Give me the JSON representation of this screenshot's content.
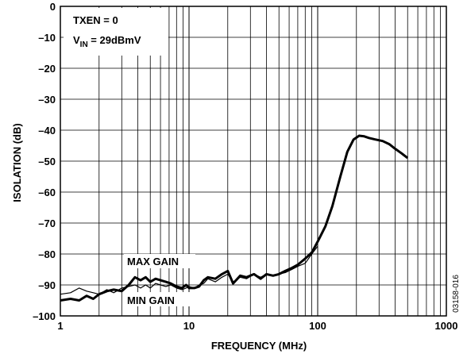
{
  "chart_data": {
    "type": "line",
    "title": "",
    "xlabel": "FREQUENCY (MHz)",
    "ylabel": "ISOLATION (dB)",
    "xscale": "log",
    "xlim": [
      1,
      1000
    ],
    "ylim": [
      -100,
      0
    ],
    "grid": true,
    "x_tick_labels": [
      "1",
      "10",
      "100",
      "1000"
    ],
    "y_tick_labels": [
      "0",
      "–10",
      "–20",
      "–30",
      "–40",
      "–50",
      "–60",
      "–70",
      "–80",
      "–90",
      "–100"
    ],
    "annotations": {
      "condition_line1": "TXEN = 0",
      "condition_line2_main": "V",
      "condition_line2_sub": "IN",
      "condition_line2_rest": " = 29dBmV",
      "max_gain_label": "MAX GAIN",
      "min_gain_label": "MIN GAIN",
      "figure_id": "03158-016"
    },
    "series": [
      {
        "name": "MAX GAIN",
        "line_weight": "thick",
        "x": [
          1,
          1.2,
          1.4,
          1.6,
          1.8,
          2,
          2.3,
          2.6,
          3,
          3.4,
          3.8,
          4.2,
          4.6,
          5,
          5.5,
          6,
          6.6,
          7.2,
          8,
          8.8,
          9.5,
          10,
          11,
          12,
          13,
          14,
          16,
          18,
          20,
          22,
          25,
          28,
          32,
          36,
          40,
          45,
          50,
          56,
          63,
          70,
          80,
          90,
          100,
          115,
          130,
          150,
          170,
          190,
          210,
          230,
          250,
          280,
          320,
          360,
          400,
          450,
          500
        ],
        "y": [
          -95,
          -94.5,
          -95,
          -93.5,
          -94.5,
          -93,
          -92,
          -91.5,
          -92,
          -90,
          -87.5,
          -88.5,
          -87.5,
          -89,
          -88,
          -88.5,
          -89,
          -89.5,
          -90.5,
          -91,
          -90,
          -91,
          -91,
          -90.5,
          -88.5,
          -87.5,
          -88,
          -86.5,
          -85.5,
          -89.5,
          -87,
          -87.5,
          -86.5,
          -88,
          -86.5,
          -87,
          -86.5,
          -85.5,
          -84.5,
          -83.5,
          -81.5,
          -79.5,
          -76,
          -71,
          -64.5,
          -55,
          -47,
          -43,
          -41.8,
          -42,
          -42.5,
          -43,
          -43.5,
          -44.5,
          -46,
          -47.5,
          -49
        ]
      },
      {
        "name": "MIN GAIN",
        "line_weight": "thin",
        "x": [
          1,
          1.2,
          1.4,
          1.6,
          1.8,
          2,
          2.3,
          2.6,
          3,
          3.4,
          3.8,
          4.2,
          4.6,
          5,
          5.5,
          6,
          6.6,
          7.2,
          8,
          8.8,
          9.5,
          10,
          11,
          12,
          13,
          14,
          16,
          18,
          20,
          22,
          25,
          28,
          32,
          36,
          40,
          45,
          50,
          56,
          63,
          70,
          80,
          90,
          100
        ],
        "y": [
          -93,
          -92.5,
          -91,
          -92,
          -92.5,
          -93,
          -91.5,
          -92.5,
          -91,
          -90.5,
          -90,
          -91,
          -90,
          -91,
          -89.5,
          -90,
          -90.5,
          -90,
          -91,
          -91.5,
          -91,
          -90.5,
          -91,
          -90,
          -89.5,
          -88,
          -89,
          -87.5,
          -86.5,
          -89,
          -87.5,
          -88,
          -86.5,
          -87.5,
          -86.5,
          -87,
          -86.5,
          -86,
          -85,
          -84,
          -83,
          -80,
          -77.5
        ]
      }
    ]
  }
}
